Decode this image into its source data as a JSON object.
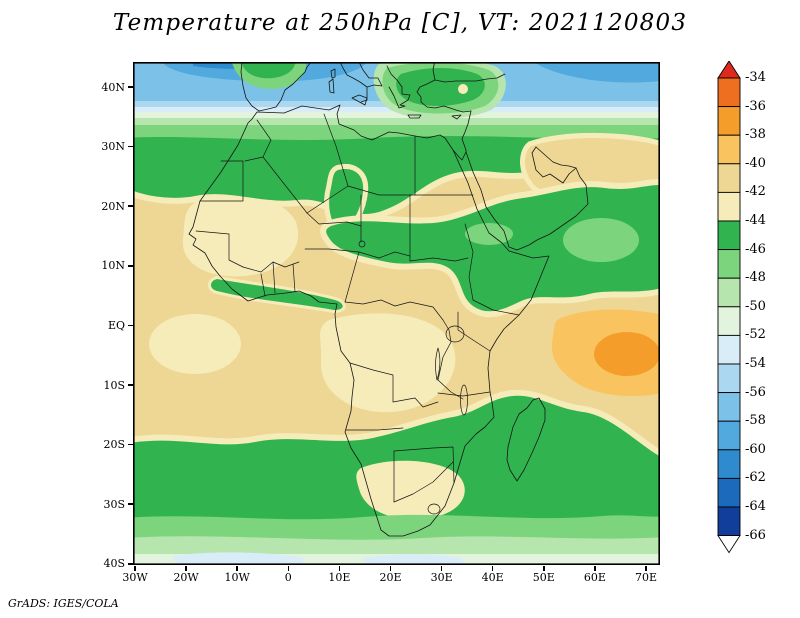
{
  "title": "Temperature at 250hPa [C], VT: 2021120803",
  "attribution": "GrADS: IGES/COLA",
  "axes": {
    "lat_ticks": [
      "40N",
      "30N",
      "20N",
      "10N",
      "EQ",
      "10S",
      "20S",
      "30S",
      "40S"
    ],
    "lon_ticks": [
      "30W",
      "20W",
      "10W",
      "0",
      "10E",
      "20E",
      "30E",
      "40E",
      "50E",
      "60E",
      "70E"
    ]
  },
  "colorbar": {
    "boundary_labels": [
      "-34",
      "-36",
      "-38",
      "-40",
      "-42",
      "-44",
      "-46",
      "-48",
      "-50",
      "-52",
      "-54",
      "-56",
      "-58",
      "-60",
      "-62",
      "-64",
      "-66"
    ],
    "palette": [
      "#dd2a1d",
      "#ee6f1f",
      "#f59d2a",
      "#f9c45f",
      "#eed795",
      "#f6ecba",
      "#31b44f",
      "#7cd47c",
      "#b6e6ae",
      "#e2f3de",
      "#d9edf8",
      "#abd7f0",
      "#7cc2e8",
      "#52a9dd",
      "#2e8bcd",
      "#1c6abb",
      "#123e9b",
      "#ffffff"
    ],
    "triangle_top_color": "#dd2a1d",
    "triangle_bottom_color": "#ffffff"
  },
  "chart_data": {
    "type": "heatmap",
    "title": "Temperature at 250hPa [C], VT: 2021120803",
    "variable": "Temperature",
    "pressure_level_hPa": 250,
    "units": "C",
    "valid_time": "2021120803",
    "projection": "latlon",
    "xlabel": "longitude",
    "ylabel": "latitude",
    "x_ticks": [
      "30W",
      "20W",
      "10W",
      "0",
      "10E",
      "20E",
      "30E",
      "40E",
      "50E",
      "60E",
      "70E"
    ],
    "y_ticks": [
      "40N",
      "30N",
      "20N",
      "10N",
      "EQ",
      "10S",
      "20S",
      "30S",
      "40S"
    ],
    "x_range_deg": [
      -30,
      73
    ],
    "y_range_deg": [
      -40,
      44
    ],
    "colorbar_levels": [
      -34,
      -36,
      -38,
      -40,
      -42,
      -44,
      -46,
      -48,
      -50,
      -52,
      -54,
      -56,
      -58,
      -60,
      -62,
      -64,
      -66
    ],
    "contour_interval": 2,
    "legend_position": "right",
    "approx_field": [
      {
        "region": "Sahara and tropical Africa interior (20N-20S)",
        "temp_C": [
          -44,
          -40
        ]
      },
      {
        "region": "West Africa / Congo basin pale cores",
        "temp_C": [
          -44,
          -42
        ]
      },
      {
        "region": "subtropical green band north (22N-33N, full width)",
        "temp_C": [
          -48,
          -44
        ]
      },
      {
        "region": "Mediterranean and southern Europe (35N-44N)",
        "temp_C": [
          -60,
          -50
        ]
      },
      {
        "region": "Turkey / Aegean warm pocket",
        "temp_C": [
          -50,
          -44
        ]
      },
      {
        "region": "Niger-Sudan-Ethiopia green tongue (0E-45E, 10N-20N)",
        "temp_C": [
          -48,
          -44
        ]
      },
      {
        "region": "east of Horn / Arabian Sea edge (45E-73E, 20N-0)",
        "temp_C": [
          -48,
          -44
        ]
      },
      {
        "region": "west Indian Ocean warm blob near equator (52E-73E, 2N-12S)",
        "temp_C": [
          -40,
          -36
        ]
      },
      {
        "region": "subtropical green band south (19S-33S, full width)",
        "temp_C": [
          -48,
          -44
        ]
      },
      {
        "region": "South Africa interior pale core (24S-31S)",
        "temp_C": [
          -44,
          -42
        ]
      },
      {
        "region": "far south margin (35S-40S)",
        "temp_C": [
          -56,
          -48
        ]
      }
    ]
  }
}
